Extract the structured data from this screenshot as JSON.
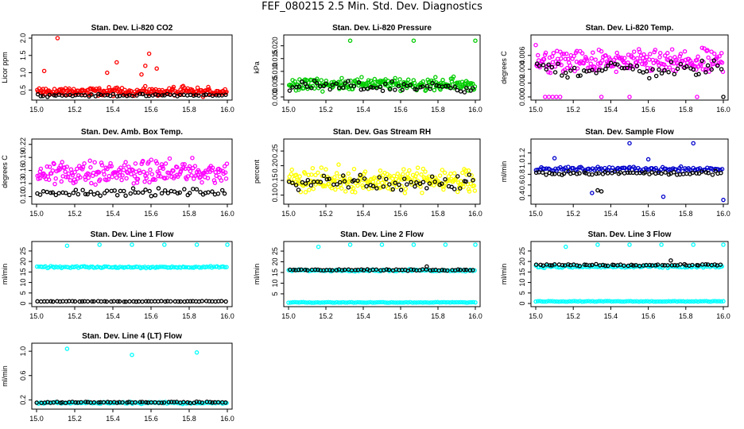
{
  "page_title": "FEF_080215  2.5 Min. Std. Dev. Diagnostics",
  "chart_data": [
    {
      "type": "scatter",
      "title": "Stan. Dev. Li-820 CO2",
      "ylabel": "Licor ppm",
      "xlim": [
        15.0,
        16.0
      ],
      "ylim": [
        0.3,
        2.0
      ],
      "xticks": [
        15.0,
        15.2,
        15.4,
        15.6,
        15.8,
        16.0
      ],
      "yticks": [
        0.5,
        1.0,
        1.5,
        2.0
      ],
      "ytick_labels": [
        "0.5",
        "1.0",
        "1.5",
        "2.0"
      ],
      "series": [
        {
          "name": "primary",
          "color": "#ff0000",
          "base": 0.45,
          "spread": 0.18,
          "outliers": [
            [
              15.11,
              2.0
            ],
            [
              15.04,
              1.05
            ],
            [
              15.59,
              1.55
            ],
            [
              15.42,
              1.3
            ],
            [
              15.57,
              1.2
            ],
            [
              15.63,
              1.12
            ],
            [
              15.37,
              1.0
            ],
            [
              15.55,
              0.95
            ]
          ]
        },
        {
          "name": "secondary",
          "color": "#000000",
          "base": 0.35,
          "spread": 0.05,
          "outliers": []
        }
      ]
    },
    {
      "type": "scatter",
      "title": "Stan. Dev. Li-820 Pressure",
      "ylabel": "kPa",
      "xlim": [
        15.0,
        16.0
      ],
      "ylim": [
        0.0,
        0.023
      ],
      "xticks": [
        15.0,
        15.2,
        15.4,
        15.6,
        15.8,
        16.0
      ],
      "yticks": [
        0.0,
        0.005,
        0.01,
        0.015,
        0.02
      ],
      "ytick_labels": [
        "0.000",
        "0.005",
        "0.010",
        "0.015",
        "0.020"
      ],
      "series": [
        {
          "name": "primary",
          "color": "#00cc00",
          "base": 0.005,
          "spread": 0.0035,
          "outliers": [
            [
              15.33,
              0.022
            ],
            [
              15.67,
              0.022
            ],
            [
              16.0,
              0.022
            ]
          ]
        },
        {
          "name": "secondary",
          "color": "#000000",
          "base": 0.004,
          "spread": 0.003,
          "outliers": []
        }
      ]
    },
    {
      "type": "scatter",
      "title": "Stan. Dev. Li-820 Temp.",
      "ylabel": "degrees C",
      "xlim": [
        15.0,
        16.0
      ],
      "ylim": [
        0.0,
        0.0085
      ],
      "xticks": [
        15.0,
        15.2,
        15.4,
        15.6,
        15.8,
        16.0
      ],
      "yticks": [
        0.0,
        0.002,
        0.004,
        0.006
      ],
      "ytick_labels": [
        "0.000",
        "0.002",
        "0.004",
        "0.006"
      ],
      "series": [
        {
          "name": "primary",
          "color": "#ff00ff",
          "base": 0.005,
          "spread": 0.0025,
          "outliers": [
            [
              15.05,
              0.0
            ],
            [
              15.07,
              0.0
            ],
            [
              15.09,
              0.0
            ],
            [
              15.11,
              0.0
            ],
            [
              15.13,
              0.0
            ],
            [
              15.35,
              0.0
            ],
            [
              15.5,
              0.0
            ],
            [
              15.86,
              0.0
            ],
            [
              15.0,
              0.0075
            ]
          ]
        },
        {
          "name": "secondary",
          "color": "#000000",
          "base": 0.004,
          "spread": 0.0018,
          "outliers": [
            [
              16.0,
              0.0
            ]
          ]
        }
      ]
    },
    {
      "type": "scatter",
      "title": "Stan. Dev. Amb. Box Temp.",
      "ylabel": "degrees C",
      "xlim": [
        15.0,
        16.0
      ],
      "ylim": [
        0.09,
        0.225
      ],
      "xticks": [
        15.0,
        15.2,
        15.4,
        15.6,
        15.8,
        16.0
      ],
      "yticks": [
        0.1,
        0.13,
        0.16,
        0.19,
        0.22
      ],
      "ytick_labels": [
        "0.10",
        "0.13",
        "0.16",
        "0.19",
        "0.22"
      ],
      "series": [
        {
          "name": "primary",
          "color": "#ff00ff",
          "base": 0.155,
          "spread": 0.04,
          "outliers": []
        },
        {
          "name": "secondary",
          "color": "#000000",
          "base": 0.11,
          "spread": 0.012,
          "outliers": []
        }
      ]
    },
    {
      "type": "scatter",
      "title": "Stan. Dev. Gas Stream RH",
      "ylabel": "percent",
      "xlim": [
        15.0,
        16.0
      ],
      "ylim": [
        0.08,
        0.28
      ],
      "xticks": [
        15.0,
        15.2,
        15.4,
        15.6,
        15.8,
        16.0
      ],
      "yticks": [
        0.1,
        0.15,
        0.2,
        0.25
      ],
      "ytick_labels": [
        "0.10",
        "0.15",
        "0.20",
        "0.25"
      ],
      "series": [
        {
          "name": "primary",
          "color": "#ffff00",
          "base": 0.15,
          "spread": 0.06,
          "outliers": []
        },
        {
          "name": "secondary",
          "color": "#000000",
          "base": 0.14,
          "spread": 0.04,
          "outliers": []
        }
      ]
    },
    {
      "type": "scatter",
      "title": "Stan. Dev. Sample Flow",
      "ylabel": "ml/min",
      "xlim": [
        15.0,
        16.0
      ],
      "ylim": [
        0.3,
        1.4
      ],
      "xticks": [
        15.0,
        15.2,
        15.4,
        15.6,
        15.8,
        16.0
      ],
      "yticks": [
        0.4,
        0.6,
        0.8,
        1.0,
        1.2
      ],
      "ytick_labels": [
        "0.4",
        "0.6",
        "0.8",
        "1.0",
        "1.2"
      ],
      "series": [
        {
          "name": "primary",
          "color": "#0000cc",
          "base": 0.9,
          "spread": 0.06,
          "outliers": [
            [
              15.5,
              1.38
            ],
            [
              15.84,
              1.38
            ],
            [
              16.0,
              0.32
            ],
            [
              15.3,
              0.45
            ],
            [
              15.68,
              0.38
            ],
            [
              15.1,
              1.1
            ],
            [
              15.6,
              1.08
            ]
          ]
        },
        {
          "name": "secondary",
          "color": "#000000",
          "base": 0.82,
          "spread": 0.05,
          "outliers": [
            [
              15.33,
              0.5
            ],
            [
              15.35,
              0.48
            ]
          ]
        }
      ]
    },
    {
      "type": "scatter",
      "title": "Stan. Dev. Line 1 Flow",
      "ylabel": "ml/min",
      "xlim": [
        15.0,
        16.0
      ],
      "ylim": [
        0,
        28
      ],
      "xticks": [
        15.0,
        15.2,
        15.4,
        15.6,
        15.8,
        16.0
      ],
      "yticks": [
        0,
        5,
        10,
        15,
        20,
        25
      ],
      "ytick_labels": [
        "0",
        "5",
        "10",
        "15",
        "20",
        "25"
      ],
      "series": [
        {
          "name": "primary",
          "color": "#00ffff",
          "base": 17.3,
          "spread": 0.6,
          "outliers": [
            [
              15.16,
              27.5
            ],
            [
              15.33,
              28
            ],
            [
              15.5,
              28
            ],
            [
              15.67,
              28
            ],
            [
              15.84,
              28
            ],
            [
              16.0,
              28
            ]
          ]
        },
        {
          "name": "secondary",
          "color": "#000000",
          "base": 1.0,
          "spread": 0.2,
          "outliers": []
        }
      ]
    },
    {
      "type": "scatter",
      "title": "Stan. Dev. Line 2 Flow",
      "ylabel": "ml/min",
      "xlim": [
        15.0,
        16.0
      ],
      "ylim": [
        0.5,
        28
      ],
      "xticks": [
        15.0,
        15.2,
        15.4,
        15.6,
        15.8,
        16.0
      ],
      "yticks": [
        5,
        10,
        15,
        20,
        25
      ],
      "ytick_labels": [
        "5",
        "10",
        "15",
        "20",
        "25"
      ],
      "series": [
        {
          "name": "primary",
          "color": "#00ffff",
          "base": 16.0,
          "spread": 0.6,
          "outliers": [
            [
              15.16,
              27
            ],
            [
              15.33,
              28
            ],
            [
              15.5,
              28
            ],
            [
              15.67,
              28
            ],
            [
              15.84,
              28
            ],
            [
              16.0,
              28
            ]
          ],
          "floor": 1.0
        },
        {
          "name": "secondary",
          "color": "#000000",
          "base": 16.2,
          "spread": 0.5,
          "outliers": [
            [
              15.74,
              17.8
            ]
          ]
        }
      ]
    },
    {
      "type": "scatter",
      "title": "Stan. Dev. Line 3 Flow",
      "ylabel": "ml/min",
      "xlim": [
        15.0,
        16.0
      ],
      "ylim": [
        0,
        28
      ],
      "xticks": [
        15.0,
        15.2,
        15.4,
        15.6,
        15.8,
        16.0
      ],
      "yticks": [
        0,
        5,
        10,
        15,
        20,
        25
      ],
      "ytick_labels": [
        "0",
        "5",
        "10",
        "15",
        "20",
        "25"
      ],
      "series": [
        {
          "name": "primary",
          "color": "#00ffff",
          "base": 17.5,
          "spread": 0.8,
          "outliers": [
            [
              15.16,
              27
            ],
            [
              15.33,
              28
            ],
            [
              15.5,
              28
            ],
            [
              15.67,
              28
            ],
            [
              15.84,
              28
            ],
            [
              16.0,
              28
            ]
          ],
          "floor": 1.0
        },
        {
          "name": "secondary",
          "color": "#000000",
          "base": 18.3,
          "spread": 0.6,
          "outliers": [
            [
              15.72,
              20.5
            ]
          ]
        }
      ]
    },
    {
      "type": "scatter",
      "title": "Stan. Dev. Line 4 (LT) Flow",
      "ylabel": "ml/min",
      "xlim": [
        15.0,
        16.0
      ],
      "ylim": [
        0.1,
        1.08
      ],
      "xticks": [
        15.0,
        15.2,
        15.4,
        15.6,
        15.8,
        16.0
      ],
      "yticks": [
        0.2,
        0.6,
        1.0
      ],
      "ytick_labels": [
        "0.2",
        "0.6",
        "1.0"
      ],
      "series": [
        {
          "name": "primary",
          "color": "#00ffff",
          "base": 0.15,
          "spread": 0.02,
          "outliers": [
            [
              15.16,
              1.04
            ],
            [
              15.5,
              0.94
            ],
            [
              15.84,
              0.98
            ]
          ]
        },
        {
          "name": "secondary",
          "color": "#000000",
          "base": 0.16,
          "spread": 0.015,
          "outliers": []
        }
      ]
    }
  ],
  "x_tick_labels": [
    "15.0",
    "15.2",
    "15.4",
    "15.6",
    "15.8",
    "16.0"
  ]
}
